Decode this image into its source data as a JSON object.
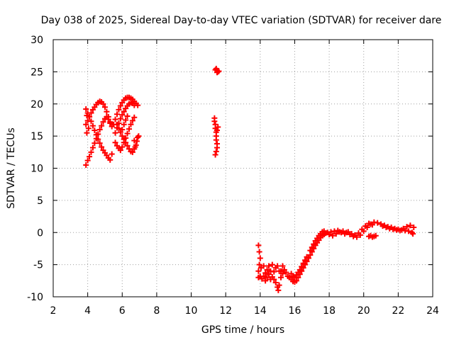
{
  "chart_data": {
    "type": "scatter",
    "title": "Day 038 of 2025, Sidereal Day-to-day VTEC variation (SDTVAR) for receiver dare",
    "xlabel": "GPS time / hours",
    "ylabel": "SDTVAR / TECUs",
    "xlim": [
      2,
      24
    ],
    "ylim": [
      -10,
      30
    ],
    "xticks": [
      "2",
      "4",
      "6",
      "8",
      "10",
      "12",
      "14",
      "16",
      "18",
      "20",
      "22",
      "24"
    ],
    "yticks": [
      "-10",
      "-5",
      "0",
      "5",
      "10",
      "15",
      "20",
      "25",
      "30"
    ],
    "grid": true,
    "marker": "+",
    "color": "#ff0000",
    "series": [
      {
        "name": "SDTVAR",
        "points": [
          [
            3.9,
            10.5
          ],
          [
            4.0,
            11.2
          ],
          [
            4.1,
            11.8
          ],
          [
            4.2,
            12.5
          ],
          [
            4.3,
            13.2
          ],
          [
            4.4,
            13.9
          ],
          [
            4.5,
            14.6
          ],
          [
            4.6,
            15.3
          ],
          [
            4.7,
            16.0
          ],
          [
            4.8,
            16.6
          ],
          [
            4.9,
            17.2
          ],
          [
            5.0,
            17.7
          ],
          [
            5.1,
            18.0
          ],
          [
            5.2,
            17.6
          ],
          [
            5.3,
            17.0
          ],
          [
            3.9,
            19.2
          ],
          [
            4.0,
            18.6
          ],
          [
            4.1,
            18.0
          ],
          [
            4.2,
            17.3
          ],
          [
            4.3,
            16.6
          ],
          [
            4.4,
            15.9
          ],
          [
            4.5,
            15.2
          ],
          [
            4.6,
            14.5
          ],
          [
            4.7,
            13.9
          ],
          [
            4.8,
            13.3
          ],
          [
            4.9,
            12.8
          ],
          [
            5.0,
            12.4
          ],
          [
            5.1,
            12.0
          ],
          [
            5.2,
            11.6
          ],
          [
            5.3,
            11.3
          ],
          [
            5.4,
            12.2
          ],
          [
            3.9,
            16.8
          ],
          [
            4.0,
            17.4
          ],
          [
            4.1,
            18.0
          ],
          [
            4.2,
            18.6
          ],
          [
            4.3,
            19.1
          ],
          [
            4.4,
            19.5
          ],
          [
            4.5,
            19.9
          ],
          [
            4.6,
            20.2
          ],
          [
            4.7,
            20.4
          ],
          [
            4.8,
            20.3
          ],
          [
            4.9,
            20.0
          ],
          [
            5.0,
            19.5
          ],
          [
            5.1,
            18.8
          ],
          [
            5.2,
            18.0
          ],
          [
            5.3,
            17.2
          ],
          [
            5.4,
            16.5
          ],
          [
            3.95,
            15.5
          ],
          [
            4.05,
            16.2
          ],
          [
            3.95,
            18.2
          ],
          [
            5.5,
            16.8
          ],
          [
            5.6,
            17.6
          ],
          [
            5.7,
            18.4
          ],
          [
            5.8,
            19.1
          ],
          [
            5.9,
            19.7
          ],
          [
            6.0,
            20.2
          ],
          [
            6.1,
            20.6
          ],
          [
            6.2,
            20.9
          ],
          [
            6.3,
            21.0
          ],
          [
            6.4,
            21.0
          ],
          [
            6.5,
            20.9
          ],
          [
            6.6,
            20.7
          ],
          [
            6.7,
            20.4
          ],
          [
            6.8,
            20.1
          ],
          [
            6.9,
            19.8
          ],
          [
            5.6,
            15.5
          ],
          [
            5.7,
            16.3
          ],
          [
            5.8,
            17.0
          ],
          [
            5.9,
            17.7
          ],
          [
            6.0,
            18.3
          ],
          [
            6.1,
            18.8
          ],
          [
            6.2,
            19.3
          ],
          [
            6.3,
            19.7
          ],
          [
            6.4,
            20.0
          ],
          [
            6.5,
            20.2
          ],
          [
            6.6,
            20.1
          ],
          [
            6.7,
            19.8
          ],
          [
            5.6,
            14.0
          ],
          [
            5.7,
            13.5
          ],
          [
            5.8,
            13.1
          ],
          [
            5.9,
            12.8
          ],
          [
            6.0,
            13.3
          ],
          [
            6.1,
            14.0
          ],
          [
            6.2,
            14.7
          ],
          [
            6.3,
            15.4
          ],
          [
            6.4,
            16.1
          ],
          [
            6.5,
            16.8
          ],
          [
            6.6,
            17.4
          ],
          [
            6.7,
            17.9
          ],
          [
            5.7,
            16.8
          ],
          [
            5.8,
            16.2
          ],
          [
            5.9,
            15.6
          ],
          [
            6.0,
            15.0
          ],
          [
            6.1,
            14.5
          ],
          [
            6.2,
            14.0
          ],
          [
            6.3,
            13.5
          ],
          [
            6.4,
            13.0
          ],
          [
            6.5,
            12.6
          ],
          [
            6.6,
            12.5
          ],
          [
            6.7,
            13.0
          ],
          [
            6.8,
            13.6
          ],
          [
            6.85,
            14.2
          ],
          [
            6.9,
            14.8
          ],
          [
            6.95,
            15.0
          ],
          [
            6.7,
            14.3
          ],
          [
            6.75,
            13.3
          ],
          [
            6.0,
            16.0
          ],
          [
            6.1,
            16.8
          ],
          [
            6.2,
            17.5
          ],
          [
            6.3,
            18.1
          ],
          [
            11.35,
            17.8
          ],
          [
            11.35,
            17.3
          ],
          [
            11.4,
            16.8
          ],
          [
            11.4,
            16.2
          ],
          [
            11.45,
            15.6
          ],
          [
            11.45,
            15.0
          ],
          [
            11.45,
            14.4
          ],
          [
            11.5,
            13.8
          ],
          [
            11.5,
            13.2
          ],
          [
            11.45,
            12.6
          ],
          [
            11.4,
            12.1
          ],
          [
            11.55,
            16.4
          ],
          [
            11.5,
            15.9
          ],
          [
            11.4,
            25.3
          ],
          [
            11.45,
            25.5
          ],
          [
            11.5,
            25.2
          ],
          [
            11.55,
            25.0
          ],
          [
            11.6,
            25.1
          ],
          [
            11.5,
            24.9
          ],
          [
            13.9,
            -2.0
          ],
          [
            13.95,
            -3.0
          ],
          [
            14.0,
            -4.0
          ],
          [
            13.95,
            -5.0
          ],
          [
            13.9,
            -6.0
          ],
          [
            14.0,
            -6.8
          ],
          [
            14.05,
            -5.5
          ],
          [
            13.9,
            -7.0
          ],
          [
            14.1,
            -7.2
          ],
          [
            14.2,
            -6.8
          ],
          [
            14.3,
            -6.3
          ],
          [
            14.4,
            -5.8
          ],
          [
            14.5,
            -6.5
          ],
          [
            14.6,
            -7.3
          ],
          [
            14.7,
            -6.9
          ],
          [
            14.8,
            -6.1
          ],
          [
            14.9,
            -5.5
          ],
          [
            15.0,
            -5.2
          ],
          [
            15.1,
            -6.0
          ],
          [
            15.2,
            -7.0
          ],
          [
            15.3,
            -6.4
          ],
          [
            15.4,
            -5.8
          ],
          [
            14.2,
            -5.2
          ],
          [
            14.3,
            -7.5
          ],
          [
            14.4,
            -7.0
          ],
          [
            14.5,
            -5.2
          ],
          [
            14.6,
            -6.0
          ],
          [
            14.7,
            -5.0
          ],
          [
            14.8,
            -7.3
          ],
          [
            14.9,
            -7.8
          ],
          [
            15.0,
            -8.5
          ],
          [
            15.05,
            -9.0
          ],
          [
            15.1,
            -8.2
          ],
          [
            15.2,
            -6.0
          ],
          [
            15.3,
            -5.2
          ],
          [
            15.5,
            -6.2
          ],
          [
            15.6,
            -6.8
          ],
          [
            15.7,
            -7.0
          ],
          [
            15.8,
            -7.3
          ],
          [
            15.9,
            -7.6
          ],
          [
            16.0,
            -7.7
          ],
          [
            16.1,
            -7.5
          ],
          [
            16.2,
            -7.0
          ],
          [
            16.3,
            -6.5
          ],
          [
            16.4,
            -6.0
          ],
          [
            16.5,
            -5.5
          ],
          [
            16.6,
            -5.0
          ],
          [
            16.7,
            -4.5
          ],
          [
            16.8,
            -4.0
          ],
          [
            15.8,
            -6.4
          ],
          [
            15.9,
            -6.8
          ],
          [
            16.0,
            -7.0
          ],
          [
            16.1,
            -6.6
          ],
          [
            16.2,
            -6.2
          ],
          [
            16.3,
            -5.8
          ],
          [
            16.4,
            -5.3
          ],
          [
            16.5,
            -4.8
          ],
          [
            16.6,
            -4.3
          ],
          [
            16.7,
            -3.8
          ],
          [
            16.9,
            -3.5
          ],
          [
            17.0,
            -3.0
          ],
          [
            17.1,
            -2.5
          ],
          [
            17.2,
            -2.0
          ],
          [
            17.3,
            -1.6
          ],
          [
            17.4,
            -1.2
          ],
          [
            17.5,
            -0.8
          ],
          [
            17.6,
            -0.5
          ],
          [
            17.7,
            -0.3
          ],
          [
            17.8,
            -0.1
          ],
          [
            17.9,
            0.0
          ],
          [
            16.9,
            -2.8
          ],
          [
            17.0,
            -2.3
          ],
          [
            17.1,
            -1.8
          ],
          [
            17.2,
            -1.3
          ],
          [
            17.3,
            -0.9
          ],
          [
            17.4,
            -0.5
          ],
          [
            17.5,
            -0.2
          ],
          [
            17.6,
            0.1
          ],
          [
            17.7,
            0.2
          ],
          [
            18.0,
            -0.3
          ],
          [
            18.2,
            -0.5
          ],
          [
            18.4,
            -0.2
          ],
          [
            18.6,
            0.1
          ],
          [
            18.8,
            0.2
          ],
          [
            19.0,
            0.0
          ],
          [
            19.2,
            -0.3
          ],
          [
            19.4,
            -0.6
          ],
          [
            19.6,
            -0.7
          ],
          [
            19.8,
            -0.4
          ],
          [
            20.0,
            0.2
          ],
          [
            20.2,
            0.8
          ],
          [
            20.4,
            1.3
          ],
          [
            20.6,
            1.6
          ],
          [
            20.8,
            1.5
          ],
          [
            18.1,
            0.1
          ],
          [
            18.3,
            0.2
          ],
          [
            18.5,
            0.3
          ],
          [
            18.7,
            0.0
          ],
          [
            18.9,
            -0.2
          ],
          [
            19.1,
            0.1
          ],
          [
            19.3,
            -0.2
          ],
          [
            19.5,
            -0.4
          ],
          [
            19.7,
            -0.1
          ],
          [
            19.9,
            0.5
          ],
          [
            20.1,
            1.0
          ],
          [
            20.3,
            1.4
          ],
          [
            20.5,
            1.2
          ],
          [
            20.3,
            -0.6
          ],
          [
            20.4,
            -0.5
          ],
          [
            20.5,
            -0.7
          ],
          [
            20.6,
            -0.6
          ],
          [
            20.7,
            -0.5
          ],
          [
            21.0,
            1.3
          ],
          [
            21.2,
            1.1
          ],
          [
            21.4,
            0.9
          ],
          [
            21.6,
            0.8
          ],
          [
            21.8,
            0.6
          ],
          [
            22.0,
            0.5
          ],
          [
            22.2,
            0.4
          ],
          [
            22.4,
            0.3
          ],
          [
            22.6,
            0.2
          ],
          [
            22.8,
            0.0
          ],
          [
            21.1,
            1.0
          ],
          [
            21.3,
            0.8
          ],
          [
            21.5,
            0.6
          ],
          [
            21.7,
            0.5
          ],
          [
            21.9,
            0.4
          ],
          [
            22.1,
            0.3
          ],
          [
            22.3,
            0.6
          ],
          [
            22.5,
            0.9
          ],
          [
            22.7,
            1.1
          ],
          [
            22.9,
            0.8
          ],
          [
            22.85,
            -0.2
          ]
        ]
      }
    ]
  }
}
